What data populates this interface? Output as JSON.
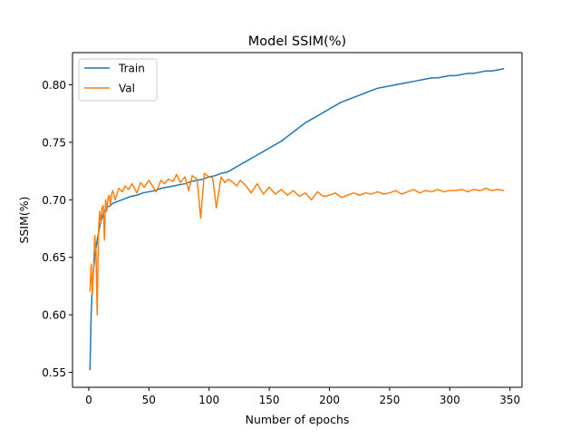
{
  "chart_data": {
    "type": "line",
    "title": "Model SSIM(%)",
    "xlabel": "Number of epochs",
    "ylabel": "SSIM(%)",
    "xlim": [
      -13.5,
      360
    ],
    "ylim": [
      0.537,
      0.828
    ],
    "xticks": [
      0,
      50,
      100,
      150,
      200,
      250,
      300,
      350
    ],
    "yticks": [
      0.55,
      0.6,
      0.65,
      0.7,
      0.75,
      0.8
    ],
    "xtick_labels": [
      "0",
      "50",
      "100",
      "150",
      "200",
      "250",
      "300",
      "350"
    ],
    "ytick_labels": [
      "0.55",
      "0.60",
      "0.65",
      "0.70",
      "0.75",
      "0.80"
    ],
    "grid": false,
    "legend_position": "upper-left",
    "series": [
      {
        "name": "Train",
        "color": "#1f77b4",
        "x": [
          1,
          2,
          3,
          4,
          5,
          6,
          7,
          8,
          9,
          10,
          11,
          12,
          14,
          16,
          18,
          20,
          25,
          30,
          35,
          40,
          45,
          50,
          55,
          60,
          65,
          70,
          75,
          80,
          85,
          90,
          95,
          100,
          105,
          110,
          115,
          120,
          125,
          130,
          135,
          140,
          145,
          150,
          155,
          160,
          165,
          170,
          175,
          180,
          185,
          190,
          195,
          200,
          205,
          210,
          215,
          220,
          225,
          230,
          235,
          240,
          245,
          250,
          255,
          260,
          265,
          270,
          275,
          280,
          285,
          290,
          295,
          300,
          305,
          310,
          315,
          320,
          325,
          330,
          335,
          340,
          345
        ],
        "y": [
          0.552,
          0.6,
          0.625,
          0.64,
          0.65,
          0.658,
          0.665,
          0.671,
          0.676,
          0.681,
          0.684,
          0.688,
          0.692,
          0.694,
          0.695,
          0.697,
          0.699,
          0.701,
          0.703,
          0.704,
          0.706,
          0.707,
          0.708,
          0.71,
          0.711,
          0.712,
          0.713,
          0.714,
          0.716,
          0.717,
          0.718,
          0.72,
          0.721,
          0.723,
          0.724,
          0.727,
          0.73,
          0.733,
          0.736,
          0.739,
          0.742,
          0.745,
          0.748,
          0.751,
          0.755,
          0.759,
          0.763,
          0.767,
          0.77,
          0.773,
          0.776,
          0.779,
          0.782,
          0.785,
          0.787,
          0.789,
          0.791,
          0.793,
          0.795,
          0.797,
          0.798,
          0.799,
          0.8,
          0.801,
          0.802,
          0.803,
          0.804,
          0.805,
          0.806,
          0.806,
          0.807,
          0.808,
          0.808,
          0.809,
          0.81,
          0.81,
          0.811,
          0.812,
          0.812,
          0.813,
          0.814
        ]
      },
      {
        "name": "Val",
        "color": "#ff7f0e",
        "x": [
          1,
          2,
          3,
          4,
          5,
          6,
          7,
          8,
          9,
          10,
          11,
          12,
          13,
          14,
          15,
          16,
          17,
          18,
          19,
          20,
          22,
          25,
          28,
          30,
          33,
          36,
          40,
          43,
          46,
          50,
          53,
          56,
          60,
          63,
          66,
          70,
          73,
          76,
          80,
          83,
          86,
          90,
          93,
          96,
          100,
          103,
          106,
          110,
          113,
          116,
          120,
          123,
          126,
          130,
          135,
          140,
          145,
          150,
          155,
          160,
          165,
          170,
          175,
          180,
          185,
          190,
          195,
          200,
          205,
          210,
          215,
          220,
          225,
          230,
          235,
          240,
          245,
          250,
          255,
          260,
          265,
          270,
          275,
          280,
          285,
          290,
          295,
          300,
          305,
          310,
          315,
          320,
          325,
          330,
          335,
          340,
          345
        ],
        "y": [
          0.62,
          0.644,
          0.618,
          0.643,
          0.669,
          0.655,
          0.6,
          0.67,
          0.69,
          0.68,
          0.693,
          0.695,
          0.665,
          0.7,
          0.69,
          0.702,
          0.704,
          0.695,
          0.705,
          0.708,
          0.7,
          0.71,
          0.707,
          0.712,
          0.709,
          0.714,
          0.706,
          0.715,
          0.711,
          0.717,
          0.712,
          0.707,
          0.717,
          0.714,
          0.718,
          0.716,
          0.722,
          0.715,
          0.72,
          0.708,
          0.721,
          0.718,
          0.684,
          0.723,
          0.72,
          0.719,
          0.693,
          0.72,
          0.715,
          0.718,
          0.715,
          0.712,
          0.717,
          0.713,
          0.706,
          0.714,
          0.705,
          0.711,
          0.705,
          0.709,
          0.704,
          0.708,
          0.703,
          0.706,
          0.7,
          0.707,
          0.703,
          0.704,
          0.706,
          0.702,
          0.704,
          0.706,
          0.704,
          0.706,
          0.705,
          0.707,
          0.705,
          0.706,
          0.708,
          0.705,
          0.707,
          0.709,
          0.706,
          0.708,
          0.707,
          0.709,
          0.707,
          0.708,
          0.708,
          0.709,
          0.707,
          0.709,
          0.708,
          0.71,
          0.708,
          0.709,
          0.708
        ]
      }
    ]
  }
}
